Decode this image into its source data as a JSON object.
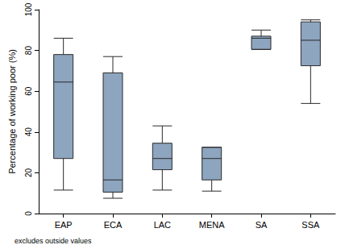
{
  "chart_data": {
    "type": "boxplot",
    "ylabel": "Percentage of working poor (%)",
    "note": "excludes outside values",
    "categories": [
      "EAP",
      "ECA",
      "LAC",
      "MENA",
      "SA",
      "SSA"
    ],
    "series": [
      {
        "name": "Percentage of working poor (%)",
        "color": "#8da5bf",
        "values": [
          [
            11.5,
            27,
            64.5,
            78,
            86
          ],
          [
            7.5,
            10.5,
            16.5,
            69,
            77
          ],
          [
            11.5,
            21.5,
            27,
            34.5,
            43
          ],
          [
            11,
            16.5,
            27,
            32.5,
            32.5
          ],
          [
            80.5,
            80.5,
            86,
            87,
            90
          ],
          [
            54,
            72.5,
            85,
            94,
            95
          ]
        ]
      }
    ],
    "ylim": [
      0,
      100
    ],
    "yticks": [
      0,
      20,
      40,
      60,
      80,
      100
    ],
    "grid": false
  }
}
